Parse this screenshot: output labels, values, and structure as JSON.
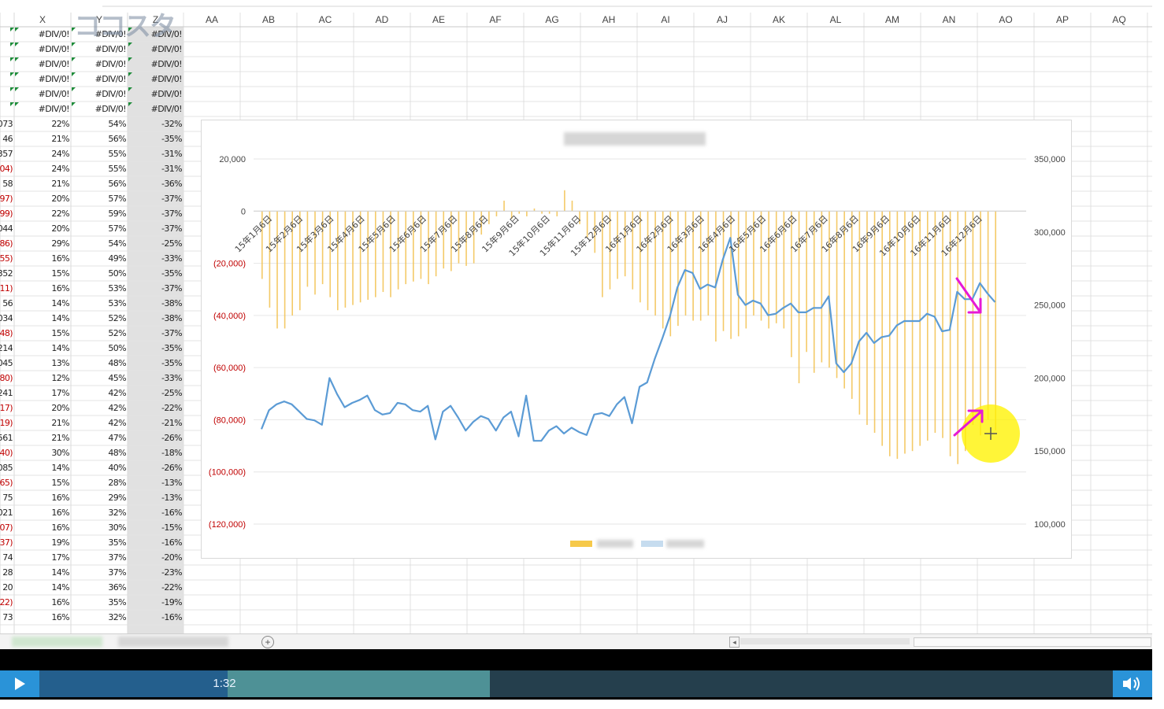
{
  "spreadsheet": {
    "left_columns": [
      "X",
      "Y",
      "Z"
    ],
    "right_columns": [
      "AA",
      "AB",
      "AC",
      "AD",
      "AE",
      "AF",
      "AG",
      "AH",
      "AI",
      "AJ",
      "AK",
      "AL",
      "AM",
      "AN",
      "AO",
      "AP",
      "AQ"
    ],
    "div_error": "#DIV/0!",
    "rows": [
      [
        "073",
        "22%",
        "54%",
        "-32%"
      ],
      [
        "46",
        "21%",
        "56%",
        "-35%"
      ],
      [
        "357",
        "24%",
        "55%",
        "-31%"
      ],
      [
        "04)",
        "24%",
        "55%",
        "-31%"
      ],
      [
        "58",
        "21%",
        "56%",
        "-36%"
      ],
      [
        "97)",
        "20%",
        "57%",
        "-37%"
      ],
      [
        "99)",
        "22%",
        "59%",
        "-37%"
      ],
      [
        "044",
        "20%",
        "57%",
        "-37%"
      ],
      [
        "86)",
        "29%",
        "54%",
        "-25%"
      ],
      [
        "55)",
        "16%",
        "49%",
        "-33%"
      ],
      [
        "352",
        "15%",
        "50%",
        "-35%"
      ],
      [
        "11)",
        "16%",
        "53%",
        "-37%"
      ],
      [
        "56",
        "14%",
        "53%",
        "-38%"
      ],
      [
        "034",
        "14%",
        "52%",
        "-38%"
      ],
      [
        "48)",
        "15%",
        "52%",
        "-37%"
      ],
      [
        "214",
        "14%",
        "50%",
        "-35%"
      ],
      [
        "045",
        "13%",
        "48%",
        "-35%"
      ],
      [
        "80)",
        "12%",
        "45%",
        "-33%"
      ],
      [
        "241",
        "17%",
        "42%",
        "-25%"
      ],
      [
        "17)",
        "20%",
        "42%",
        "-22%"
      ],
      [
        "19)",
        "21%",
        "42%",
        "-21%"
      ],
      [
        "561",
        "21%",
        "47%",
        "-26%"
      ],
      [
        "40)",
        "30%",
        "48%",
        "-18%"
      ],
      [
        "085",
        "14%",
        "40%",
        "-26%"
      ],
      [
        "65)",
        "15%",
        "28%",
        "-13%"
      ],
      [
        "75",
        "16%",
        "29%",
        "-13%"
      ],
      [
        "021",
        "16%",
        "32%",
        "-16%"
      ],
      [
        "07)",
        "16%",
        "30%",
        "-15%"
      ],
      [
        "37)",
        "19%",
        "35%",
        "-16%"
      ],
      [
        "74",
        "17%",
        "37%",
        "-20%"
      ],
      [
        "28",
        "14%",
        "37%",
        "-23%"
      ],
      [
        "20",
        "14%",
        "36%",
        "-22%"
      ],
      [
        "22)",
        "16%",
        "35%",
        "-19%"
      ],
      [
        "73",
        "16%",
        "32%",
        "-16%"
      ]
    ]
  },
  "chart_data": {
    "type": "bar+line",
    "y_left": {
      "ticks": [
        "20,000",
        "0",
        "(20,000)",
        "(40,000)",
        "(60,000)",
        "(80,000)",
        "(100,000)",
        "(120,000)"
      ],
      "range": [
        -120000,
        20000
      ]
    },
    "y_right": {
      "ticks": [
        "350,000",
        "300,000",
        "250,000",
        "200,000",
        "150,000",
        "100,000"
      ],
      "range": [
        100000,
        350000
      ]
    },
    "x_labels": [
      "15年1月6日",
      "15年2月6日",
      "15年3月6日",
      "15年4月6日",
      "15年5月6日",
      "15年6月6日",
      "15年7月6日",
      "15年8月6日",
      "15年9月6日",
      "15年10月6日",
      "15年11月6日",
      "15年12月6日",
      "16年1月6日",
      "16年2月6日",
      "16年3月6日",
      "16年4月6日",
      "16年5月6日",
      "16年6月6日",
      "16年7月6日",
      "16年8月6日",
      "16年9月6日",
      "16年10月6日",
      "16年11月6日",
      "16年12月6日"
    ],
    "bars": [
      -26000,
      -37000,
      -45000,
      -45000,
      -40000,
      -38000,
      -29000,
      -32000,
      -28000,
      -33000,
      -38000,
      -37000,
      -36000,
      -35000,
      -34000,
      -33000,
      -31000,
      -33000,
      -30000,
      -28000,
      -27000,
      -26000,
      -28000,
      -25000,
      -22000,
      -23000,
      -20000,
      -21000,
      -20000,
      -9000,
      -5000,
      -2000,
      4000,
      -3000,
      -1000,
      -2000,
      1000,
      -1000,
      -1000,
      -2000,
      8000,
      4000,
      -5000,
      -10000,
      -16000,
      -33000,
      -30000,
      -26000,
      -25000,
      -30000,
      -35000,
      -38000,
      -40000,
      -45000,
      -48000,
      -44000,
      -40000,
      -42000,
      -42000,
      -40000,
      -50000,
      -46000,
      -49000,
      -48000,
      -45000,
      -40000,
      -42000,
      -45000,
      -43000,
      -45000,
      -56000,
      -66000,
      -54000,
      -62000,
      -58000,
      -60000,
      -64000,
      -68000,
      -72000,
      -78000,
      -82000,
      -85000,
      -90000,
      -94000,
      -95000,
      -93000,
      -92000,
      -90000,
      -88000,
      -85000,
      -87000,
      -94000,
      -97000,
      -92000,
      -82000,
      -86000,
      -80000,
      -84000
    ],
    "line": [
      165000,
      178000,
      182000,
      184000,
      182000,
      177000,
      172000,
      171000,
      168000,
      200000,
      189000,
      180000,
      183000,
      185000,
      188000,
      178000,
      175000,
      176000,
      183000,
      182000,
      178000,
      177000,
      181000,
      158000,
      177000,
      181000,
      173000,
      164000,
      170000,
      174000,
      172000,
      164000,
      173000,
      177000,
      160000,
      188000,
      157000,
      157000,
      164000,
      167000,
      162000,
      166000,
      163000,
      161000,
      175000,
      176000,
      174000,
      182000,
      187000,
      169000,
      194000,
      197000,
      213000,
      227000,
      242000,
      262000,
      274000,
      272000,
      261000,
      264000,
      262000,
      281000,
      296000,
      257000,
      250000,
      253000,
      251000,
      243000,
      244000,
      248000,
      251000,
      245000,
      245000,
      248000,
      248000,
      256000,
      210000,
      204000,
      210000,
      225000,
      231000,
      224000,
      228000,
      229000,
      236000,
      239000,
      239000,
      239000,
      244000,
      242000,
      232000,
      233000,
      259000,
      254000,
      254000,
      265000,
      258000,
      252000
    ]
  },
  "video": {
    "time": "1:32",
    "progress_played": 0.175,
    "progress_buffered": 0.42
  },
  "watermark": "ココスタ"
}
